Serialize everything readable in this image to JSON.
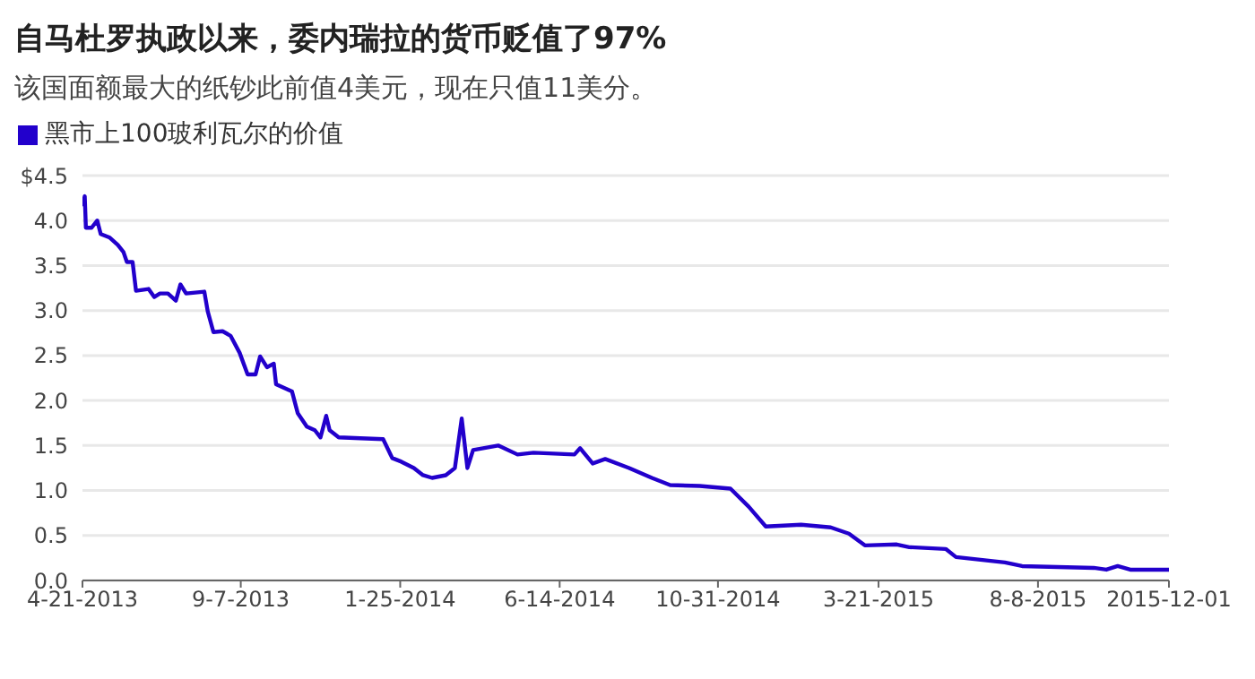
{
  "chart_data": {
    "type": "line",
    "title": "自马杜罗执政以来，委内瑞拉的货币贬值了97%",
    "subtitle": "该国面额最大的纸钞此前值4美元，现在只值11美分。",
    "x": [
      "2013-04-21",
      "2013-04-23",
      "2013-04-24",
      "2013-04-29",
      "2013-05-04",
      "2013-05-07",
      "2013-05-15",
      "2013-05-22",
      "2013-05-27",
      "2013-05-30",
      "2013-06-04",
      "2013-06-07",
      "2013-06-18",
      "2013-06-23",
      "2013-06-28",
      "2013-07-05",
      "2013-07-12",
      "2013-07-16",
      "2013-07-21",
      "2013-08-06",
      "2013-08-09",
      "2013-08-14",
      "2013-08-22",
      "2013-08-29",
      "2013-09-06",
      "2013-09-13",
      "2013-09-20",
      "2013-09-24",
      "2013-09-30",
      "2013-10-06",
      "2013-10-08",
      "2013-10-22",
      "2013-10-27",
      "2013-11-04",
      "2013-11-11",
      "2013-11-16",
      "2013-11-21",
      "2013-11-24",
      "2013-12-02",
      "2013-12-21",
      "2014-01-10",
      "2014-01-18",
      "2014-01-26",
      "2014-02-06",
      "2014-02-14",
      "2014-02-22",
      "2014-03-06",
      "2014-03-14",
      "2014-03-20",
      "2014-03-25",
      "2014-03-30",
      "2014-04-21",
      "2014-05-08",
      "2014-05-22",
      "2014-06-27",
      "2014-07-02",
      "2014-07-13",
      "2014-07-24",
      "2014-08-14",
      "2014-09-03",
      "2014-09-19",
      "2014-10-15",
      "2014-11-11",
      "2014-11-27",
      "2014-12-12",
      "2015-01-12",
      "2015-02-07",
      "2015-02-23",
      "2015-03-09",
      "2015-04-06",
      "2015-04-17",
      "2015-05-19",
      "2015-05-28",
      "2015-07-10",
      "2015-07-25",
      "2015-09-26",
      "2015-10-07",
      "2015-10-17",
      "2015-10-28",
      "2015-12-01"
    ],
    "series": [
      {
        "name": "黑市上100玻利瓦尔的价值",
        "color": "#2200cc",
        "values": [
          4.16,
          4.27,
          3.92,
          3.92,
          4.0,
          3.85,
          3.81,
          3.73,
          3.65,
          3.54,
          3.54,
          3.22,
          3.24,
          3.15,
          3.19,
          3.19,
          3.11,
          3.29,
          3.19,
          3.21,
          2.99,
          2.76,
          2.77,
          2.72,
          2.53,
          2.29,
          2.29,
          2.49,
          2.37,
          2.41,
          2.18,
          2.1,
          1.86,
          1.71,
          1.67,
          1.59,
          1.83,
          1.67,
          1.59,
          1.58,
          1.57,
          1.36,
          1.32,
          1.25,
          1.17,
          1.14,
          1.17,
          1.25,
          1.8,
          1.25,
          1.45,
          1.5,
          1.4,
          1.42,
          1.4,
          1.47,
          1.3,
          1.35,
          1.25,
          1.14,
          1.06,
          1.05,
          1.02,
          0.82,
          0.6,
          0.62,
          0.59,
          0.52,
          0.39,
          0.4,
          0.37,
          0.35,
          0.26,
          0.2,
          0.16,
          0.14,
          0.12,
          0.16,
          0.12,
          0.12
        ]
      }
    ],
    "xlim": [
      "2013-04-21",
      "2015-12-01"
    ],
    "xticks": [
      {
        "value": "2013-04-21",
        "label": "4-21-2013"
      },
      {
        "value": "2013-09-07",
        "label": "9-7-2013"
      },
      {
        "value": "2014-01-25",
        "label": "1-25-2014"
      },
      {
        "value": "2014-06-14",
        "label": "6-14-2014"
      },
      {
        "value": "2014-10-31",
        "label": "10-31-2014"
      },
      {
        "value": "2015-03-21",
        "label": "3-21-2015"
      },
      {
        "value": "2015-08-08",
        "label": "8-8-2015"
      },
      {
        "value": "2015-12-01",
        "label": "2015-12-01"
      }
    ],
    "ylim": [
      0,
      4.5
    ],
    "yticks": [
      {
        "value": 0,
        "label": "0.0"
      },
      {
        "value": 0.5,
        "label": "0.5"
      },
      {
        "value": 1,
        "label": "1.0"
      },
      {
        "value": 1.5,
        "label": "1.5"
      },
      {
        "value": 2,
        "label": "2.0"
      },
      {
        "value": 2.5,
        "label": "2.5"
      },
      {
        "value": 3,
        "label": "3.0"
      },
      {
        "value": 3.5,
        "label": "3.5"
      },
      {
        "value": 4,
        "label": "4.0"
      },
      {
        "value": 4.5,
        "label": "$4.5"
      }
    ],
    "grid": "y",
    "legend": "top left",
    "marker": "none",
    "line_style": "solid"
  }
}
